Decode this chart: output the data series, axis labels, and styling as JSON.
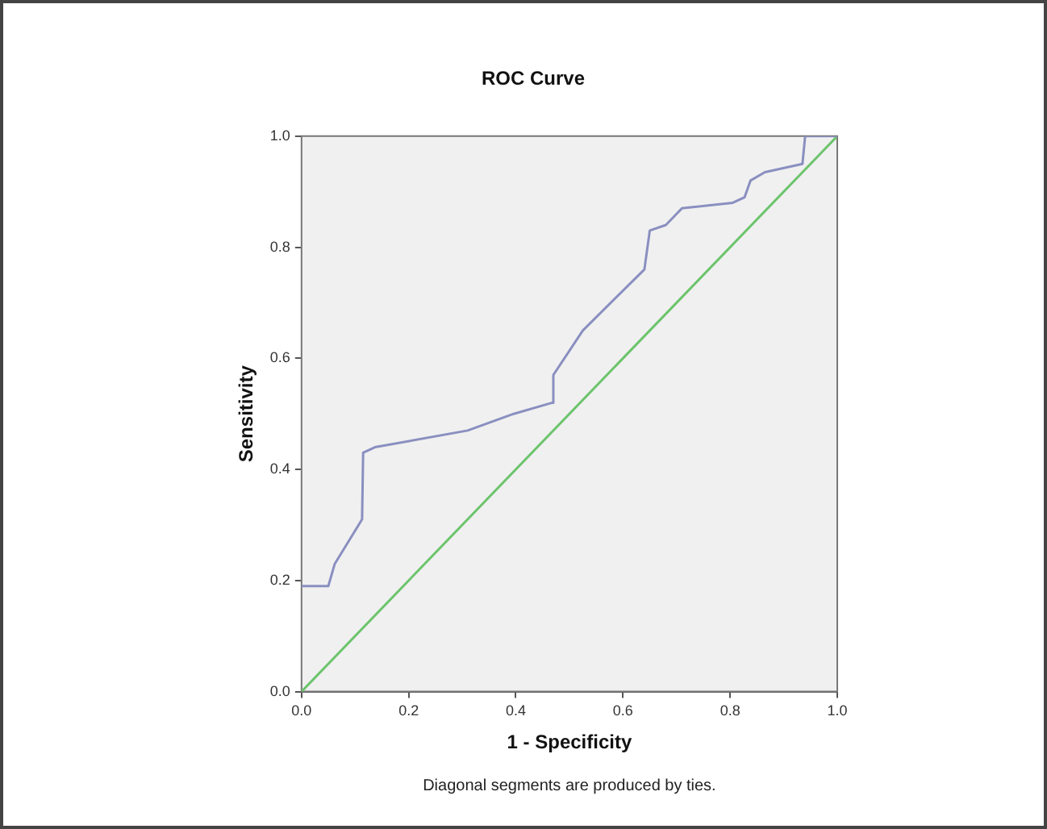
{
  "chart_data": {
    "type": "line",
    "title": "ROC Curve",
    "xlabel": "1 - Specificity",
    "ylabel": "Sensitivity",
    "annotations": [
      "Diagonal segments are produced by ties."
    ],
    "series": [
      {
        "color": "#8a8fc0",
        "x": [
          0,
          0.05,
          0.062,
          0.113,
          0.115,
          0.137,
          0.31,
          0.396,
          0.468,
          0.47,
          0.525,
          0.64,
          0.65,
          0.68,
          0.7,
          0.71,
          0.805,
          0.827,
          0.838,
          0.865,
          0.935,
          0.94,
          1
        ],
        "values": [
          0.19,
          0.19,
          0.23,
          0.31,
          0.43,
          0.44,
          0.47,
          0.5,
          0.52,
          0.57,
          0.65,
          0.76,
          0.83,
          0.84,
          0.86,
          0.87,
          0.88,
          0.89,
          0.92,
          0.935,
          0.95,
          1,
          1
        ]
      },
      {
        "color": "#6cc46c",
        "x": [
          0,
          1
        ],
        "values": [
          0,
          1
        ]
      }
    ],
    "xlim": [
      0,
      1
    ],
    "ylim": [
      0,
      1
    ],
    "xticks": [
      {
        "value": 0,
        "label": "0.0"
      },
      0.2,
      0.4,
      0.6,
      0.8,
      {
        "value": 1,
        "label": "1.0"
      }
    ],
    "yticks": [
      {
        "value": 0,
        "label": "0.0"
      },
      0.2,
      0.4,
      0.6,
      0.8,
      {
        "value": 1,
        "label": "1.0"
      }
    ],
    "marker": "none",
    "line_style": "solid"
  }
}
